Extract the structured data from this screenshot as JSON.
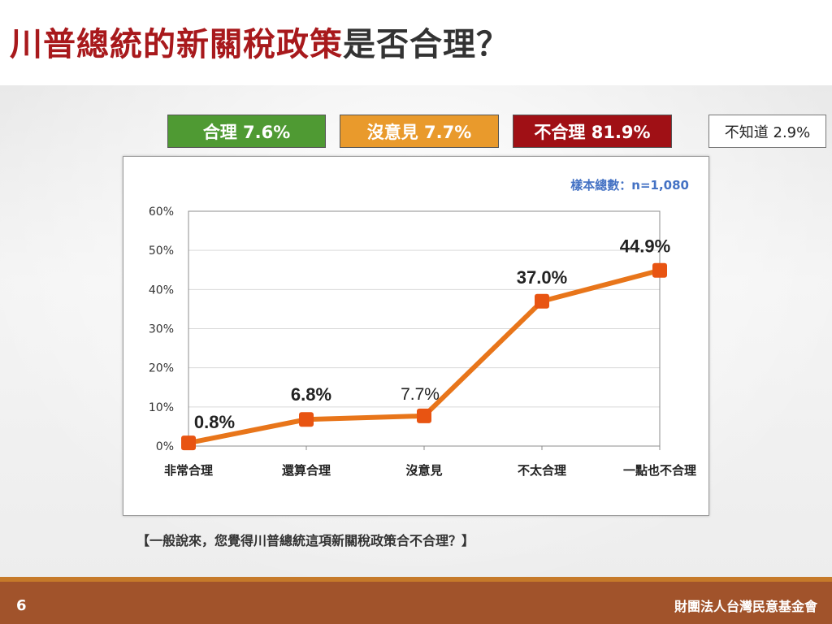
{
  "slide": {
    "title_red": "川普總統的新關稅政策",
    "title_dark": "是否合理？",
    "question": "【一般說來，您覺得川普總統這項新關稅政策合不合理？】",
    "page_number": "6",
    "organization": "財團法人台灣民意基金會"
  },
  "summary": {
    "reasonable": "合理 7.6%",
    "no_opinion": "沒意見 7.7%",
    "unreasonable": "不合理 81.9%",
    "dont_know": "不知道 2.9%"
  },
  "colors": {
    "title_red": "#a8191c",
    "green": "#4f9a33",
    "orange": "#e99a2c",
    "dark_red": "#a01015",
    "line": "#e8751a",
    "marker": "#e85412",
    "sample_text": "#4472c4",
    "footer": "#a1532b"
  },
  "chart_data": {
    "type": "line",
    "categories": [
      "非常合理",
      "還算合理",
      "沒意見",
      "不太合理",
      "一點也不合理"
    ],
    "values": [
      0.8,
      6.8,
      7.7,
      37.0,
      44.9
    ],
    "data_labels": [
      "0.8%",
      "6.8%",
      "7.7%",
      "37.0%",
      "44.9%"
    ],
    "ylim": [
      0,
      60
    ],
    "y_ticks": [
      0,
      10,
      20,
      30,
      40,
      50,
      60
    ],
    "y_tick_labels": [
      "0%",
      "10%",
      "20%",
      "30%",
      "40%",
      "50%",
      "60%"
    ],
    "grid": true,
    "annotation": "樣本總數：n=1,080"
  }
}
